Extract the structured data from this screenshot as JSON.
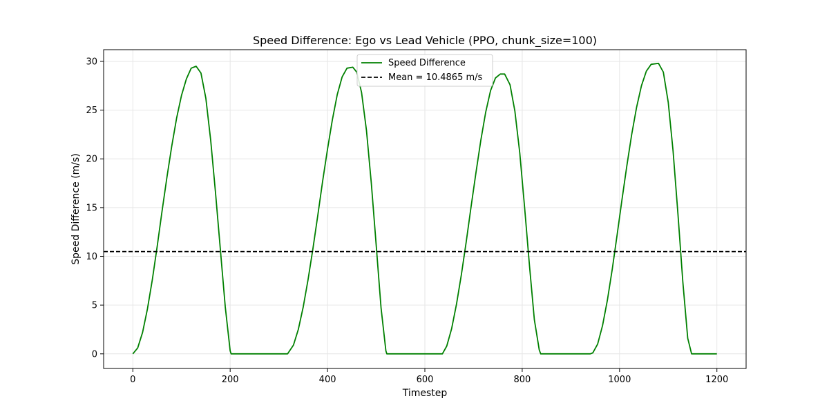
{
  "chart_data": {
    "type": "line",
    "title": "Speed Difference: Ego vs Lead Vehicle (PPO, chunk_size=100)",
    "xlabel": "Timestep",
    "ylabel": "Speed Difference (m/s)",
    "xlim": [
      -60,
      1260
    ],
    "ylim": [
      -1.5,
      31.2
    ],
    "xticks": [
      0,
      200,
      400,
      600,
      800,
      1000,
      1200
    ],
    "yticks": [
      0,
      5,
      10,
      15,
      20,
      25,
      30
    ],
    "grid": true,
    "legend_position": "upper center",
    "series": [
      {
        "name": "Speed Difference",
        "color": "#008000",
        "style": "solid",
        "x": [
          0,
          10,
          20,
          30,
          40,
          50,
          60,
          70,
          80,
          90,
          100,
          110,
          120,
          130,
          140,
          150,
          160,
          170,
          180,
          190,
          200,
          202,
          210,
          250,
          300,
          318,
          330,
          340,
          350,
          360,
          370,
          380,
          390,
          400,
          410,
          420,
          430,
          440,
          452,
          460,
          470,
          480,
          490,
          500,
          510,
          520,
          522,
          530,
          580,
          620,
          636,
          645,
          655,
          665,
          675,
          685,
          695,
          705,
          715,
          725,
          735,
          745,
          755,
          764,
          775,
          785,
          795,
          805,
          815,
          825,
          835,
          838,
          845,
          900,
          940,
          945,
          955,
          965,
          975,
          985,
          995,
          1005,
          1015,
          1025,
          1035,
          1045,
          1055,
          1065,
          1080,
          1090,
          1100,
          1110,
          1120,
          1130,
          1140,
          1148,
          1150,
          1200
        ],
        "y": [
          0.0,
          0.6,
          2.2,
          4.6,
          7.6,
          11.0,
          14.6,
          18.1,
          21.3,
          24.2,
          26.5,
          28.2,
          29.3,
          29.5,
          28.8,
          26.2,
          21.9,
          16.5,
          10.6,
          4.8,
          0.3,
          0.0,
          0.0,
          0.0,
          0.0,
          0.0,
          0.9,
          2.5,
          4.8,
          7.6,
          10.8,
          14.2,
          17.7,
          21.0,
          24.0,
          26.6,
          28.4,
          29.3,
          29.4,
          28.9,
          26.8,
          22.9,
          17.5,
          11.2,
          4.7,
          0.3,
          0.0,
          0.0,
          0.0,
          0.0,
          0.0,
          0.8,
          2.6,
          5.1,
          8.1,
          11.5,
          15.1,
          18.6,
          21.9,
          24.8,
          27.0,
          28.3,
          28.7,
          28.7,
          27.6,
          24.9,
          20.6,
          15.0,
          9.0,
          3.5,
          0.4,
          0.0,
          0.0,
          0.0,
          0.0,
          0.1,
          1.0,
          2.9,
          5.5,
          8.7,
          12.2,
          15.8,
          19.3,
          22.5,
          25.3,
          27.5,
          29.0,
          29.7,
          29.8,
          28.9,
          25.8,
          20.8,
          14.3,
          7.4,
          1.6,
          0.0,
          0.0,
          0.0
        ]
      },
      {
        "name": "Mean = 10.4865 m/s",
        "color": "#000000",
        "style": "dashed",
        "value": 10.4865
      }
    ]
  }
}
